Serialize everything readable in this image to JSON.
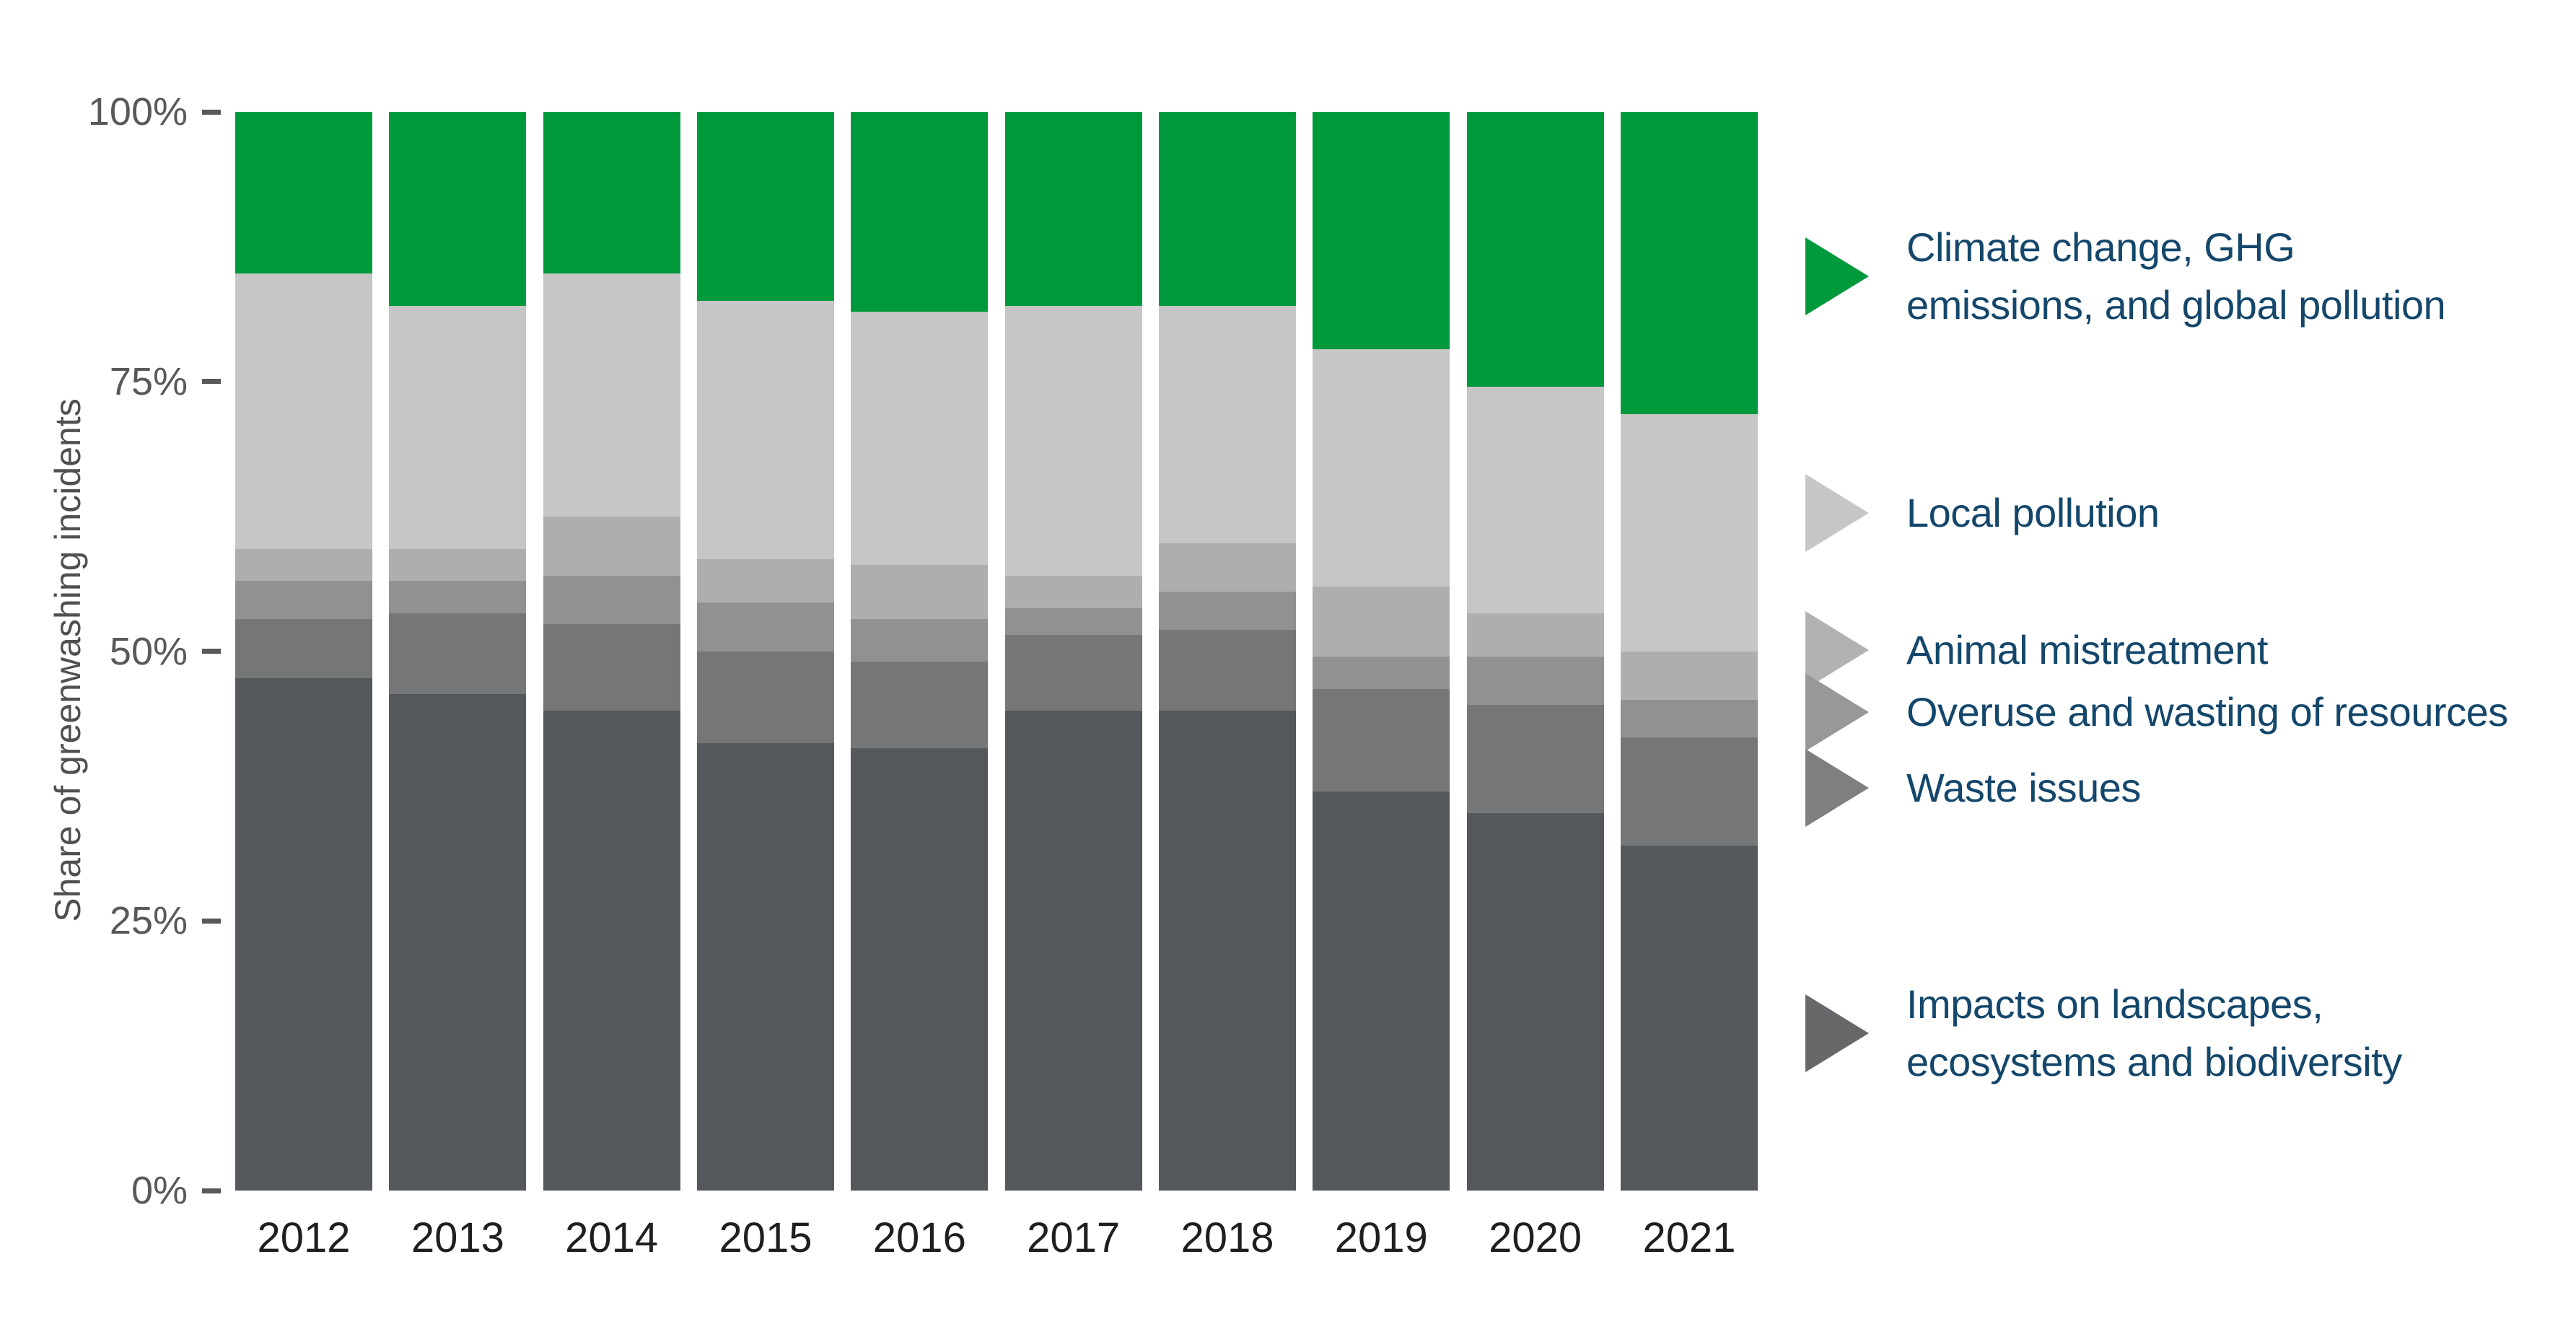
{
  "chart_data": {
    "type": "bar",
    "stacked": true,
    "ylabel": "Share of greenwashing incidents",
    "ylim": [
      0,
      100
    ],
    "grid": false,
    "legend_position": "right",
    "categories": [
      "2012",
      "2013",
      "2014",
      "2015",
      "2016",
      "2017",
      "2018",
      "2019",
      "2020",
      "2021"
    ],
    "y_ticks": [
      {
        "label": "0%",
        "value": 0
      },
      {
        "label": "25%",
        "value": 25
      },
      {
        "label": "50%",
        "value": 50
      },
      {
        "label": "75%",
        "value": 75
      },
      {
        "label": "100%",
        "value": 100
      }
    ],
    "series": [
      {
        "name": "Impacts on landscapes, ecosystems and biodiversity",
        "color": "#54585C",
        "values": [
          47.5,
          46,
          44.5,
          41.5,
          41,
          44.5,
          44.5,
          37,
          35,
          32
        ]
      },
      {
        "name": "Waste issues",
        "color": "#757677",
        "values": [
          5.5,
          7.5,
          8,
          8.5,
          8,
          7,
          7.5,
          9.5,
          10,
          10
        ]
      },
      {
        "name": "Overuse and wasting of resources",
        "color": "#909192",
        "values": [
          3.5,
          3,
          4.5,
          4.5,
          4,
          2.5,
          3.5,
          3,
          4.5,
          3.5
        ]
      },
      {
        "name": "Animal mistreatment",
        "color": "#AEAEAE",
        "values": [
          3,
          3,
          5.5,
          4,
          5,
          3,
          4.5,
          6.5,
          4,
          4.5
        ]
      },
      {
        "name": "Local pollution",
        "color": "#C6C6C6",
        "values": [
          25.5,
          22.5,
          22.5,
          24,
          23.5,
          25,
          22,
          22,
          21,
          22
        ]
      },
      {
        "name": "Climate change, GHG emissions, and global pollution",
        "color": "#009A3D",
        "values": [
          15,
          18,
          15,
          17.5,
          18.5,
          18,
          18,
          22,
          25.5,
          28
        ]
      }
    ]
  },
  "legend": {
    "items": [
      {
        "label_lines": [
          "Climate change, GHG",
          "emissions, and global pollution"
        ],
        "color": "#009A3D"
      },
      {
        "label_lines": [
          "Local pollution"
        ],
        "color": "#C6C6C6"
      },
      {
        "label_lines": [
          "Animal mistreatment"
        ],
        "color": "#B2B2B2"
      },
      {
        "label_lines": [
          "Overuse and wasting of resources"
        ],
        "color": "#979898"
      },
      {
        "label_lines": [
          "Waste issues"
        ],
        "color": "#7E7F80"
      },
      {
        "label_lines": [
          "Impacts on landscapes,",
          "ecosystems and biodiversity"
        ],
        "color": "#66686A"
      }
    ]
  }
}
